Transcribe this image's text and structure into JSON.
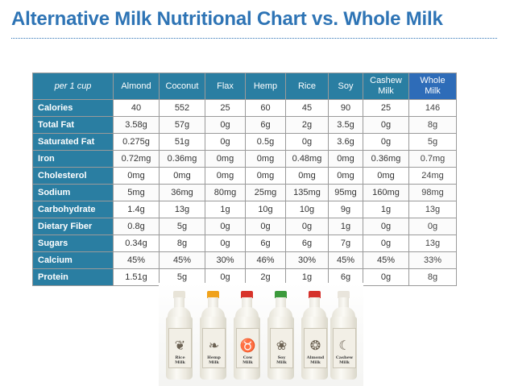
{
  "title": "Alternative Milk Nutritional Chart vs. Whole Milk",
  "colors": {
    "title": "#2e74b5",
    "header_bg": "#2a7ea2",
    "whole_header_bg": "#2e6cb8"
  },
  "table": {
    "corner_label": "per 1 cup",
    "columns": [
      {
        "line1": "Almond",
        "line2": ""
      },
      {
        "line1": "Coconut",
        "line2": ""
      },
      {
        "line1": "Flax",
        "line2": ""
      },
      {
        "line1": "Hemp",
        "line2": ""
      },
      {
        "line1": "Rice",
        "line2": ""
      },
      {
        "line1": "Soy",
        "line2": ""
      },
      {
        "line1": "Cashew",
        "line2": "Milk"
      },
      {
        "line1": "Whole",
        "line2": "Milk"
      }
    ],
    "rows": [
      {
        "label": "Calories",
        "values": [
          "40",
          "552",
          "25",
          "60",
          "45",
          "90",
          "25",
          "146"
        ]
      },
      {
        "label": "Total Fat",
        "values": [
          "3.58g",
          "57g",
          "0g",
          "6g",
          "2g",
          "3.5g",
          "0g",
          "8g"
        ]
      },
      {
        "label": "Saturated Fat",
        "values": [
          "0.275g",
          "51g",
          "0g",
          "0.5g",
          "0g",
          "3.6g",
          "0g",
          "5g"
        ]
      },
      {
        "label": "Iron",
        "values": [
          "0.72mg",
          "0.36mg",
          "0mg",
          "0mg",
          "0.48mg",
          "0mg",
          "0.36mg",
          "0.7mg"
        ]
      },
      {
        "label": "Cholesterol",
        "values": [
          "0mg",
          "0mg",
          "0mg",
          "0mg",
          "0mg",
          "0mg",
          "0mg",
          "24mg"
        ]
      },
      {
        "label": "Sodium",
        "values": [
          "5mg",
          "36mg",
          "80mg",
          "25mg",
          "135mg",
          "95mg",
          "160mg",
          "98mg"
        ]
      },
      {
        "label": "Carbohydrate",
        "values": [
          "1.4g",
          "13g",
          "1g",
          "10g",
          "10g",
          "9g",
          "1g",
          "13g"
        ]
      },
      {
        "label": "Dietary Fiber",
        "values": [
          "0.8g",
          "5g",
          "0g",
          "0g",
          "0g",
          "1g",
          "0g",
          "0g"
        ]
      },
      {
        "label": "Sugars",
        "values": [
          "0.34g",
          "8g",
          "0g",
          "6g",
          "6g",
          "7g",
          "0g",
          "13g"
        ]
      },
      {
        "label": "Calcium",
        "values": [
          "45%",
          "45%",
          "30%",
          "46%",
          "30%",
          "45%",
          "45%",
          "33%"
        ]
      },
      {
        "label": "Protein",
        "values": [
          "1.51g",
          "5g",
          "0g",
          "2g",
          "1g",
          "6g",
          "0g",
          "8g"
        ]
      }
    ]
  },
  "photo": {
    "bottles": [
      {
        "cap_color": "#e8e4d8",
        "icon": "rice-plant-icon",
        "glyph": "❦",
        "line1": "Rice",
        "line2": "Milk"
      },
      {
        "cap_color": "#f0a21b",
        "icon": "hemp-leaf-icon",
        "glyph": "❧",
        "line1": "Hemp",
        "line2": "Milk"
      },
      {
        "cap_color": "#d8342a",
        "icon": "cow-icon",
        "glyph": "♉",
        "line1": "Cow",
        "line2": "Milk"
      },
      {
        "cap_color": "#3c9a3c",
        "icon": "soy-bean-icon",
        "glyph": "❀",
        "line1": "Soy",
        "line2": "Milk"
      },
      {
        "cap_color": "#d5312b",
        "icon": "almond-icon",
        "glyph": "❂",
        "line1": "Almond",
        "line2": "Milk"
      },
      {
        "cap_color": "#e9e5dc",
        "icon": "cashew-icon",
        "glyph": "☾",
        "line1": "Cashew",
        "line2": "Milk"
      }
    ]
  }
}
